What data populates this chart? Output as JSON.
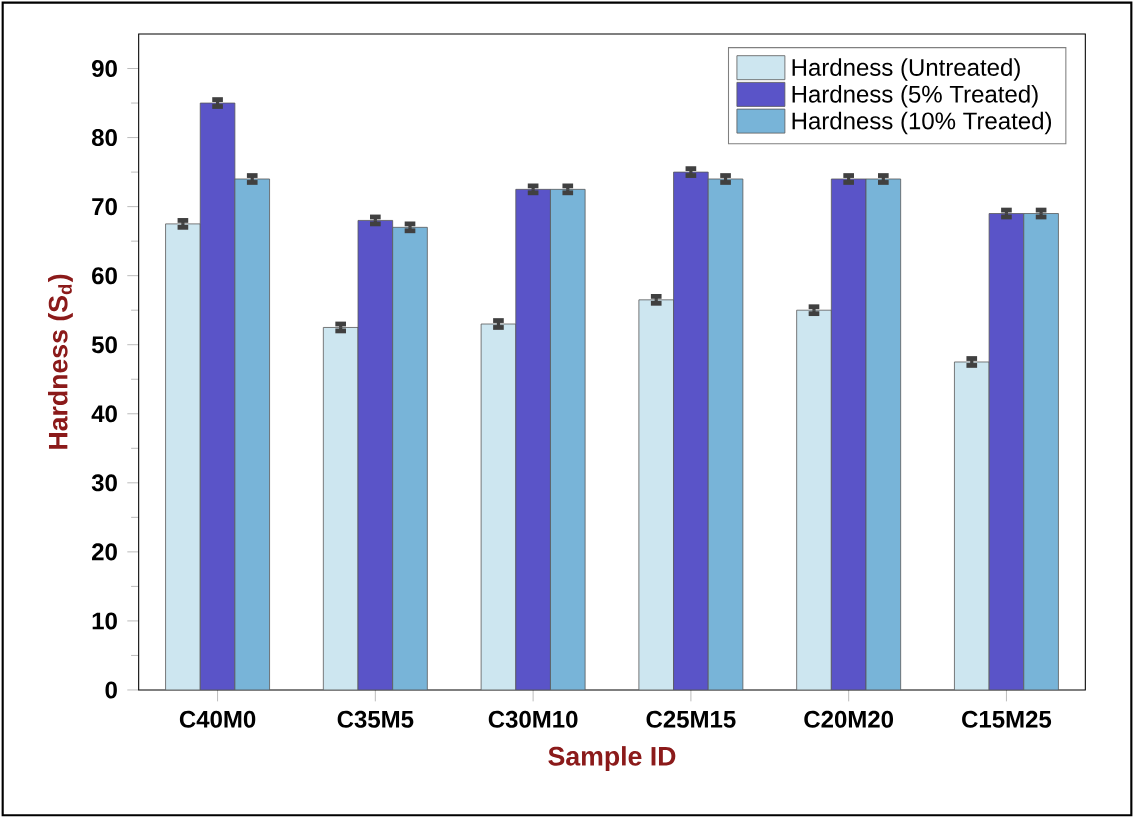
{
  "chart_data": {
    "type": "bar",
    "xlabel": "Sample ID",
    "ylabel": "Hardness (S$_{d}$)",
    "categories": [
      "C40M0",
      "C35M5",
      "C30M10",
      "C25M15",
      "C20M20",
      "C15M25"
    ],
    "series": [
      {
        "name": "Hardness (Untreated)",
        "color": "#cde6f0",
        "values": [
          67.5,
          52.5,
          53,
          56.5,
          55,
          47.5
        ],
        "errors": [
          0.5,
          0.5,
          0.5,
          0.5,
          0.5,
          0.5
        ]
      },
      {
        "name": "Hardness (5% Treated)",
        "color": "#5a54c8",
        "values": [
          85,
          68,
          72.5,
          75,
          74,
          69
        ],
        "errors": [
          0.5,
          0.5,
          0.5,
          0.5,
          0.5,
          0.5
        ]
      },
      {
        "name": "Hardness (10% Treated)",
        "color": "#78b4d8",
        "values": [
          74,
          67,
          72.5,
          74,
          74,
          69
        ],
        "errors": [
          0.5,
          0.5,
          0.5,
          0.5,
          0.5,
          0.5
        ]
      }
    ],
    "ylim": [
      0,
      95
    ],
    "yticks": [
      0,
      10,
      20,
      30,
      40,
      50,
      60,
      70,
      80,
      90
    ],
    "legend": "top right",
    "grid": false
  }
}
